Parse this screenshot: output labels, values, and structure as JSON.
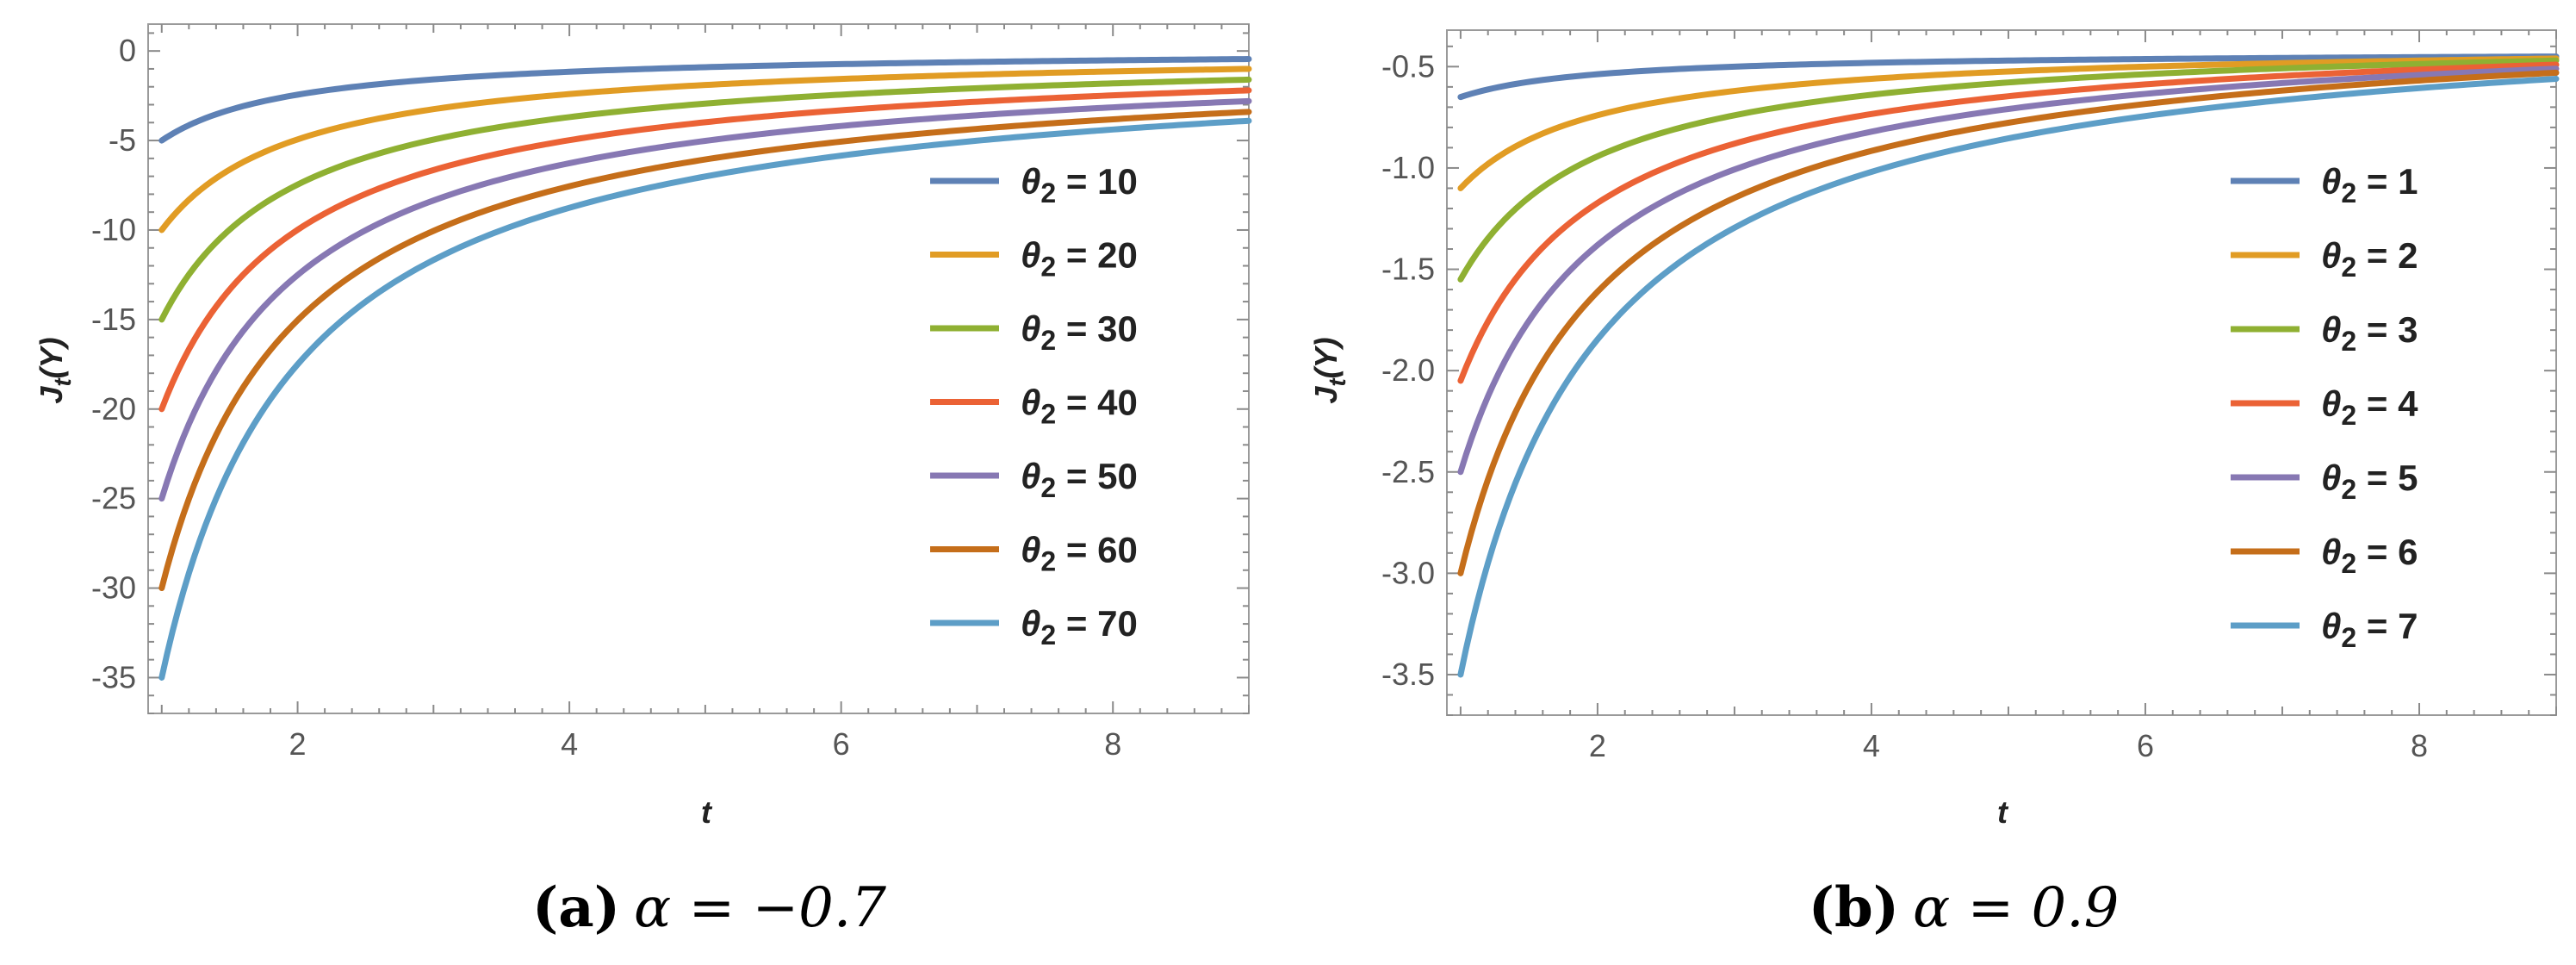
{
  "chart_data": [
    {
      "type": "line",
      "panel": "a",
      "caption_letter": "(a)",
      "caption_math": "α = −0.7",
      "xlabel": "t",
      "ylabel": "J_t(Y)",
      "xlim": [
        0.9,
        9.0
      ],
      "ylim": [
        -37,
        1.5
      ],
      "x_ticks": [
        2,
        4,
        6,
        8
      ],
      "y_ticks": [
        0,
        -5,
        -10,
        -15,
        -20,
        -25,
        -30,
        -35
      ],
      "x_range": [
        1,
        9
      ],
      "legend_position": "center-right",
      "series": [
        {
          "name": "θ2 = 10",
          "theta2": 10,
          "color": "#5E81B5",
          "values": {
            "t": [
              1,
              2,
              4,
              6,
              9
            ],
            "J": [
              -5.0,
              -1.9,
              -1.0,
              -0.7,
              -0.45
            ]
          }
        },
        {
          "name": "θ2 = 20",
          "theta2": 20,
          "color": "#E19C24",
          "values": {
            "t": [
              1,
              2,
              4,
              6,
              9
            ],
            "J": [
              -10.0,
              -4.2,
              -2.2,
              -1.5,
              -1.0
            ]
          }
        },
        {
          "name": "θ2 = 30",
          "theta2": 30,
          "color": "#8FB032",
          "values": {
            "t": [
              1,
              2,
              4,
              6,
              9
            ],
            "J": [
              -15.0,
              -6.5,
              -3.4,
              -2.3,
              -1.6
            ]
          }
        },
        {
          "name": "θ2 = 40",
          "theta2": 40,
          "color": "#EB6235",
          "values": {
            "t": [
              1,
              2,
              4,
              6,
              9
            ],
            "J": [
              -20.0,
              -9.0,
              -4.6,
              -3.1,
              -2.2
            ]
          }
        },
        {
          "name": "θ2 = 50",
          "theta2": 50,
          "color": "#8778B3",
          "values": {
            "t": [
              1,
              2,
              4,
              6,
              9
            ],
            "J": [
              -25.0,
              -11.3,
              -5.9,
              -4.0,
              -2.8
            ]
          }
        },
        {
          "name": "θ2 = 60",
          "theta2": 60,
          "color": "#C56E1A",
          "values": {
            "t": [
              1,
              2,
              4,
              6,
              9
            ],
            "J": [
              -30.0,
              -13.7,
              -7.1,
              -4.9,
              -3.4
            ]
          }
        },
        {
          "name": "θ2 = 70",
          "theta2": 70,
          "color": "#5D9EC7",
          "values": {
            "t": [
              1,
              2,
              4,
              6,
              9
            ],
            "J": [
              -35.0,
              -16.0,
              -8.4,
              -5.7,
              -3.9
            ]
          }
        }
      ]
    },
    {
      "type": "line",
      "panel": "b",
      "caption_letter": "(b)",
      "caption_math": "α = 0.9",
      "xlabel": "t",
      "ylabel": "J_t(Y)",
      "xlim": [
        0.9,
        9.0
      ],
      "ylim": [
        -3.7,
        -0.32
      ],
      "x_ticks": [
        2,
        4,
        6,
        8
      ],
      "y_ticks": [
        -0.5,
        -1.0,
        -1.5,
        -2.0,
        -2.5,
        -3.0,
        -3.5
      ],
      "x_range": [
        1,
        9
      ],
      "legend_position": "center-right",
      "series": [
        {
          "name": "θ2 = 1",
          "theta2": 1,
          "color": "#5E81B5",
          "values": {
            "t": [
              1,
              2,
              4,
              6,
              9
            ],
            "J": [
              -0.65,
              -0.49,
              -0.46,
              -0.455,
              -0.45
            ]
          }
        },
        {
          "name": "θ2 = 2",
          "theta2": 2,
          "color": "#E19C24",
          "values": {
            "t": [
              1,
              2,
              4,
              6,
              9
            ],
            "J": [
              -1.1,
              -0.65,
              -0.5,
              -0.47,
              -0.46
            ]
          }
        },
        {
          "name": "θ2 = 3",
          "theta2": 3,
          "color": "#8FB032",
          "values": {
            "t": [
              1,
              2,
              4,
              6,
              9
            ],
            "J": [
              -1.55,
              -0.83,
              -0.56,
              -0.49,
              -0.47
            ]
          }
        },
        {
          "name": "θ2 = 4",
          "theta2": 4,
          "color": "#EB6235",
          "values": {
            "t": [
              1,
              2,
              4,
              6,
              9
            ],
            "J": [
              -2.05,
              -1.05,
              -0.63,
              -0.52,
              -0.49
            ]
          }
        },
        {
          "name": "θ2 = 5",
          "theta2": 5,
          "color": "#8778B3",
          "values": {
            "t": [
              1,
              2,
              4,
              6,
              9
            ],
            "J": [
              -2.5,
              -1.28,
              -0.7,
              -0.56,
              -0.51
            ]
          }
        },
        {
          "name": "θ2 = 6",
          "theta2": 6,
          "color": "#C56E1A",
          "values": {
            "t": [
              1,
              2,
              4,
              6,
              9
            ],
            "J": [
              -3.0,
              -1.52,
              -0.8,
              -0.6,
              -0.53
            ]
          }
        },
        {
          "name": "θ2 = 7",
          "theta2": 7,
          "color": "#5D9EC7",
          "values": {
            "t": [
              1,
              2,
              4,
              6,
              9
            ],
            "J": [
              -3.5,
              -1.78,
              -0.9,
              -0.65,
              -0.56
            ]
          }
        }
      ]
    }
  ]
}
